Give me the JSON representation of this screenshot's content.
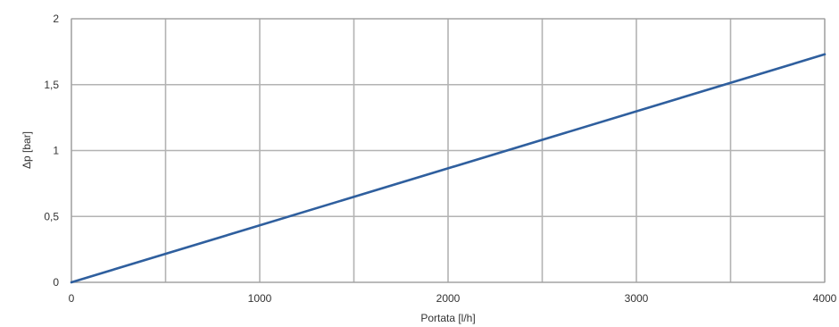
{
  "chart_data": {
    "type": "line",
    "title": "",
    "xlabel": "Portata [l/h]",
    "ylabel": "Δp [bar]",
    "xlim": [
      0,
      4000
    ],
    "ylim": [
      0,
      2
    ],
    "x_ticks": [
      0,
      500,
      1000,
      1500,
      2000,
      2500,
      3000,
      3500,
      4000
    ],
    "x_tick_labels": [
      "0",
      "",
      "1000",
      "",
      "2000",
      "",
      "3000",
      "",
      "4000"
    ],
    "y_ticks": [
      0,
      0.5,
      1,
      1.5,
      2
    ],
    "y_tick_labels": [
      "0",
      "0,5",
      "1",
      "1,5",
      "2"
    ],
    "grid": true,
    "legend": "none",
    "series": [
      {
        "color": "#2f5f9e",
        "x": [
          0,
          4000
        ],
        "y": [
          0,
          1.73
        ]
      }
    ]
  }
}
